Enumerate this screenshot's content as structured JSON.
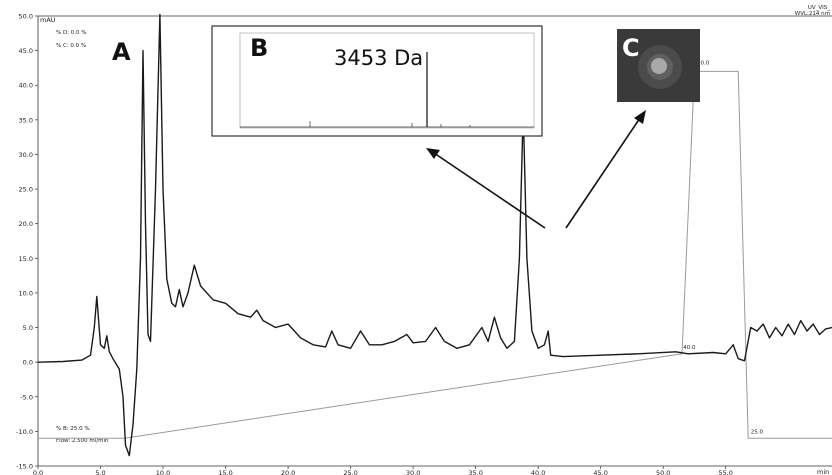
{
  "chart_data": {
    "type": "line",
    "title": "",
    "xlabel": "",
    "ylabel": "",
    "y_unit_label": "mAU",
    "x_unit_label": "min",
    "detector_label": "UV_VIS_",
    "wavelength_label": "WVL:214 nm",
    "xlim": [
      0,
      63.5
    ],
    "ylim": [
      -15,
      50
    ],
    "x_ticks": [
      0,
      5,
      10,
      15,
      20,
      25,
      30,
      35,
      40,
      45,
      50,
      55
    ],
    "x_tick_labels": [
      "0.0",
      "5.0",
      "10.0",
      "15.0",
      "20.0",
      "25.0",
      "30.0",
      "35.0",
      "40.0",
      "45.0",
      "50.0",
      "55.0"
    ],
    "y_ticks": [
      50,
      45,
      40,
      35,
      30,
      25,
      20,
      15,
      10,
      5,
      0,
      -5,
      -10,
      -15
    ],
    "y_tick_labels": [
      "50.0",
      "45.0",
      "40.0",
      "35.0",
      "30.0",
      "25.0",
      "20.0",
      "15.0",
      "10.0",
      "5.0",
      "0.0",
      "-5.0",
      "-10.0",
      "-15.0"
    ],
    "grid": false,
    "series": [
      {
        "color": "#1a1a1a",
        "points": [
          [
            0,
            0.0
          ],
          [
            2,
            0.1
          ],
          [
            3.5,
            0.3
          ],
          [
            4.2,
            1.0
          ],
          [
            4.5,
            5.0
          ],
          [
            4.7,
            9.5
          ],
          [
            4.85,
            6.0
          ],
          [
            5.0,
            2.5
          ],
          [
            5.3,
            2.0
          ],
          [
            5.5,
            3.8
          ],
          [
            5.7,
            1.5
          ],
          [
            6.0,
            0.5
          ],
          [
            6.5,
            -1.0
          ],
          [
            6.8,
            -5.0
          ],
          [
            7.0,
            -12.0
          ],
          [
            7.3,
            -13.5
          ],
          [
            7.6,
            -9.0
          ],
          [
            7.9,
            -1.0
          ],
          [
            8.2,
            15.0
          ],
          [
            8.4,
            45.0
          ],
          [
            8.6,
            20.0
          ],
          [
            8.8,
            4.0
          ],
          [
            9.0,
            3.0
          ],
          [
            9.4,
            25.0
          ],
          [
            9.75,
            51.0
          ],
          [
            10.0,
            25.0
          ],
          [
            10.3,
            12.0
          ],
          [
            10.7,
            8.5
          ],
          [
            11.0,
            8.0
          ],
          [
            11.3,
            10.5
          ],
          [
            11.6,
            8.0
          ],
          [
            12.0,
            10.0
          ],
          [
            12.5,
            14.0
          ],
          [
            13.0,
            11.0
          ],
          [
            14.0,
            9.0
          ],
          [
            15.0,
            8.5
          ],
          [
            16.0,
            7.0
          ],
          [
            17.0,
            6.5
          ],
          [
            17.5,
            7.5
          ],
          [
            18.0,
            6.0
          ],
          [
            19.0,
            5.0
          ],
          [
            20.0,
            5.5
          ],
          [
            21.0,
            3.5
          ],
          [
            22.0,
            2.5
          ],
          [
            23.0,
            2.2
          ],
          [
            23.5,
            4.5
          ],
          [
            24.0,
            2.5
          ],
          [
            25.0,
            2.0
          ],
          [
            25.8,
            4.5
          ],
          [
            26.5,
            2.5
          ],
          [
            27.5,
            2.5
          ],
          [
            28.5,
            3.0
          ],
          [
            29.5,
            4.0
          ],
          [
            30.0,
            2.8
          ],
          [
            31.0,
            3.0
          ],
          [
            31.8,
            5.0
          ],
          [
            32.5,
            3.0
          ],
          [
            33.5,
            2.0
          ],
          [
            34.5,
            2.5
          ],
          [
            35.5,
            5.0
          ],
          [
            36.0,
            3.0
          ],
          [
            36.5,
            6.5
          ],
          [
            37.0,
            3.5
          ],
          [
            37.5,
            2.0
          ],
          [
            38.1,
            3.0
          ],
          [
            38.5,
            15.0
          ],
          [
            38.8,
            36.5
          ],
          [
            39.1,
            15.0
          ],
          [
            39.5,
            4.5
          ],
          [
            40.0,
            2.0
          ],
          [
            40.5,
            2.5
          ],
          [
            40.8,
            4.5
          ],
          [
            41.0,
            1.0
          ],
          [
            42.0,
            0.8
          ],
          [
            45.0,
            1.0
          ],
          [
            48.0,
            1.2
          ],
          [
            51.0,
            1.5
          ],
          [
            52.0,
            1.2
          ],
          [
            54.0,
            1.4
          ],
          [
            55.0,
            1.2
          ],
          [
            55.6,
            2.5
          ],
          [
            56.0,
            0.5
          ],
          [
            56.5,
            0.2
          ],
          [
            57.0,
            5.0
          ],
          [
            57.5,
            4.5
          ],
          [
            58.0,
            5.5
          ],
          [
            58.5,
            3.5
          ],
          [
            59.0,
            5.0
          ],
          [
            59.5,
            3.8
          ],
          [
            60.0,
            5.5
          ],
          [
            60.5,
            4.0
          ],
          [
            61.0,
            6.0
          ],
          [
            61.5,
            4.5
          ],
          [
            62.0,
            5.5
          ],
          [
            62.5,
            4.0
          ],
          [
            63.0,
            4.8
          ],
          [
            63.5,
            5.0
          ]
        ]
      }
    ],
    "gradient": {
      "color": "#9a9a9a",
      "percent_b_label": "% B: 25.0 %",
      "flow_label": "Flow: 2.500 ml/min",
      "points": [
        [
          0,
          -11.0
        ],
        [
          6.9,
          -11.0
        ],
        [
          51.5,
          1.2
        ],
        [
          52.5,
          42.0
        ],
        [
          56.0,
          42.0
        ],
        [
          56.8,
          -11.0
        ],
        [
          63.5,
          -11.0
        ]
      ],
      "annotations": [
        {
          "x": 52.7,
          "y": 43.0,
          "text": "90.0"
        },
        {
          "x": 51.6,
          "y": 1.9,
          "text": "40.0"
        },
        {
          "x": 57.0,
          "y": -10.3,
          "text": "25.0"
        }
      ],
      "top_left_labels": [
        "% D: 0.0 %",
        "% C: 0.0 %"
      ]
    },
    "annotations": [
      {
        "text": "A"
      },
      {
        "text": "B"
      },
      {
        "text": "C"
      },
      {
        "text": "3453 Da"
      }
    ]
  }
}
